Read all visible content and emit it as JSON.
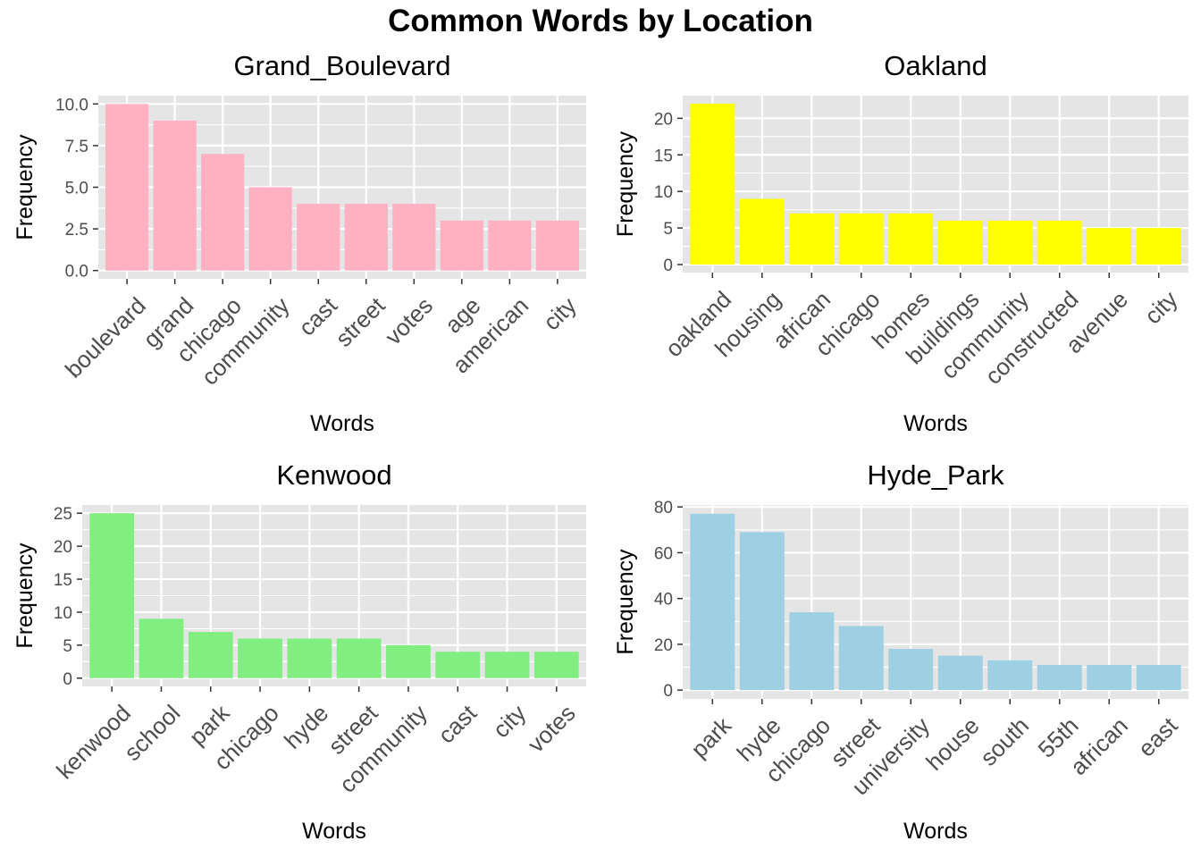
{
  "title": "Common Words by Location",
  "colors": {
    "panel_bg": "#e5e5e5",
    "grid": "#ffffff",
    "tick": "#333333"
  },
  "chart_data": [
    {
      "type": "bar",
      "title": "Grand_Boulevard",
      "xlabel": "Words",
      "ylabel": "Frequency",
      "color": "#ffb0c1",
      "categories": [
        "boulevard",
        "grand",
        "chicago",
        "community",
        "cast",
        "street",
        "votes",
        "age",
        "american",
        "city"
      ],
      "values": [
        10,
        9,
        7,
        5,
        4,
        4,
        4,
        3,
        3,
        3
      ],
      "yticks": [
        0,
        2.5,
        5,
        7.5,
        10
      ],
      "ytick_labels": [
        "0.0",
        "2.5",
        "5.0",
        "7.5",
        "10.0"
      ],
      "ylim": [
        -0.5,
        10.5
      ],
      "grid": true
    },
    {
      "type": "bar",
      "title": "Oakland",
      "xlabel": "Words",
      "ylabel": "Frequency",
      "color": "#ffff00",
      "categories": [
        "oakland",
        "housing",
        "african",
        "chicago",
        "homes",
        "buildings",
        "community",
        "constructed",
        "avenue",
        "city"
      ],
      "values": [
        22,
        9,
        7,
        7,
        7,
        6,
        6,
        6,
        5,
        5
      ],
      "yticks": [
        0,
        5,
        10,
        15,
        20
      ],
      "ytick_labels": [
        "0",
        "5",
        "10",
        "15",
        "20"
      ],
      "ylim": [
        -1.1,
        23.1
      ],
      "grid": true
    },
    {
      "type": "bar",
      "title": "Kenwood",
      "xlabel": "Words",
      "ylabel": "Frequency",
      "color": "#80ee80",
      "categories": [
        "kenwood",
        "school",
        "park",
        "chicago",
        "hyde",
        "street",
        "community",
        "cast",
        "city",
        "votes"
      ],
      "values": [
        25,
        9,
        7,
        6,
        6,
        6,
        5,
        4,
        4,
        4
      ],
      "yticks": [
        0,
        5,
        10,
        15,
        20,
        25
      ],
      "ytick_labels": [
        "0",
        "5",
        "10",
        "15",
        "20",
        "25"
      ],
      "ylim": [
        -1.25,
        26.25
      ],
      "grid": true
    },
    {
      "type": "bar",
      "title": "Hyde_Park",
      "xlabel": "Words",
      "ylabel": "Frequency",
      "color": "#9fcfe2",
      "categories": [
        "park",
        "hyde",
        "chicago",
        "street",
        "university",
        "house",
        "south",
        "55th",
        "african",
        "east"
      ],
      "values": [
        77,
        69,
        34,
        28,
        18,
        15,
        13,
        11,
        11,
        11
      ],
      "yticks": [
        0,
        20,
        40,
        60,
        80
      ],
      "ytick_labels": [
        "0",
        "20",
        "40",
        "60",
        "80"
      ],
      "ylim": [
        -3.85,
        80.85
      ],
      "grid": true
    }
  ]
}
